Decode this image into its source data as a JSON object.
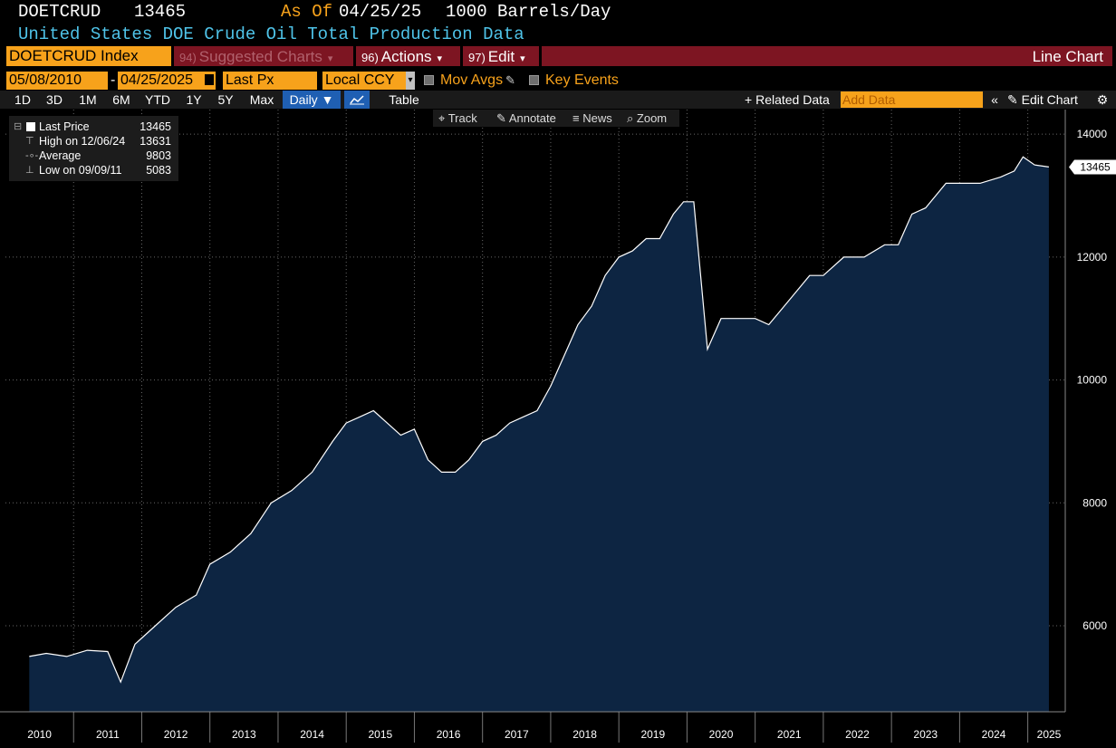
{
  "header": {
    "ticker": "DOETCRUD",
    "last_value": "13465",
    "as_of_label": "As Of",
    "as_of_date": "04/25/25",
    "units": "1000 Barrels/Day",
    "description": "United States DOE Crude Oil Total Production Data"
  },
  "menu": {
    "security": "DOETCRUD Index",
    "suggested_num": "94)",
    "suggested_label": "Suggested Charts",
    "actions_num": "96)",
    "actions_label": "Actions",
    "edit_num": "97)",
    "edit_label": "Edit",
    "chart_type": "Line Chart"
  },
  "controls": {
    "start_date": "05/08/2010",
    "date_sep": "-",
    "end_date": "04/25/2025",
    "field": "Last Px",
    "currency": "Local CCY",
    "mov_avgs": "Mov Avgs",
    "key_events": "Key Events"
  },
  "ranges": [
    "1D",
    "3D",
    "1M",
    "6M",
    "YTD",
    "1Y",
    "5Y",
    "Max"
  ],
  "frequency": "Daily",
  "table_label": "Table",
  "related_label": "Related Data",
  "add_data_placeholder": "Add Data",
  "edit_chart_label": "Edit Chart",
  "tools": {
    "track": "Track",
    "annotate": "Annotate",
    "news": "News",
    "zoom": "Zoom"
  },
  "legend": {
    "last_label": "Last Price",
    "last_value": "13465",
    "high_label": "High on 12/06/24",
    "high_value": "13631",
    "avg_label": "Average",
    "avg_value": "9803",
    "low_label": "Low on 09/09/11",
    "low_value": "5083"
  },
  "colors": {
    "background": "#000000",
    "area_fill": "#0d2542",
    "line": "#ffffff",
    "accent_orange": "#f7a21b",
    "menu_red": "#7d1522",
    "header_cyan": "#4fc3e8"
  },
  "chart_data": {
    "type": "area",
    "title": "",
    "xlabel": "",
    "ylabel": "",
    "ylim": [
      4600,
      14400
    ],
    "yticks": [
      6000,
      8000,
      10000,
      12000,
      14000
    ],
    "xtick_labels": [
      "2010",
      "2011",
      "2012",
      "2013",
      "2014",
      "2015",
      "2016",
      "2017",
      "2018",
      "2019",
      "2020",
      "2021",
      "2022",
      "2023",
      "2024",
      "2025"
    ],
    "last_value_label": "13465",
    "grid": true,
    "x": [
      2010.35,
      2010.6,
      2010.9,
      2011.2,
      2011.5,
      2011.69,
      2011.9,
      2012.2,
      2012.5,
      2012.8,
      2013.0,
      2013.3,
      2013.6,
      2013.9,
      2014.2,
      2014.5,
      2014.8,
      2015.0,
      2015.2,
      2015.4,
      2015.6,
      2015.8,
      2016.0,
      2016.2,
      2016.4,
      2016.6,
      2016.8,
      2017.0,
      2017.2,
      2017.4,
      2017.6,
      2017.8,
      2018.0,
      2018.2,
      2018.4,
      2018.6,
      2018.8,
      2019.0,
      2019.2,
      2019.4,
      2019.6,
      2019.8,
      2019.95,
      2020.1,
      2020.3,
      2020.5,
      2020.8,
      2021.0,
      2021.2,
      2021.5,
      2021.8,
      2022.0,
      2022.3,
      2022.6,
      2022.9,
      2023.1,
      2023.3,
      2023.5,
      2023.8,
      2024.0,
      2024.3,
      2024.6,
      2024.8,
      2024.93,
      2025.1,
      2025.31
    ],
    "y": [
      5500,
      5550,
      5500,
      5600,
      5580,
      5083,
      5700,
      6000,
      6300,
      6500,
      7000,
      7200,
      7500,
      8000,
      8200,
      8500,
      9000,
      9300,
      9400,
      9500,
      9300,
      9100,
      9200,
      8700,
      8500,
      8500,
      8700,
      9000,
      9100,
      9300,
      9400,
      9500,
      9900,
      10400,
      10900,
      11200,
      11700,
      12000,
      12100,
      12300,
      12300,
      12700,
      12900,
      12900,
      10500,
      11000,
      11000,
      11000,
      10900,
      11300,
      11700,
      11700,
      12000,
      12000,
      12200,
      12200,
      12700,
      12800,
      13200,
      13200,
      13200,
      13300,
      13400,
      13631,
      13500,
      13465
    ]
  }
}
